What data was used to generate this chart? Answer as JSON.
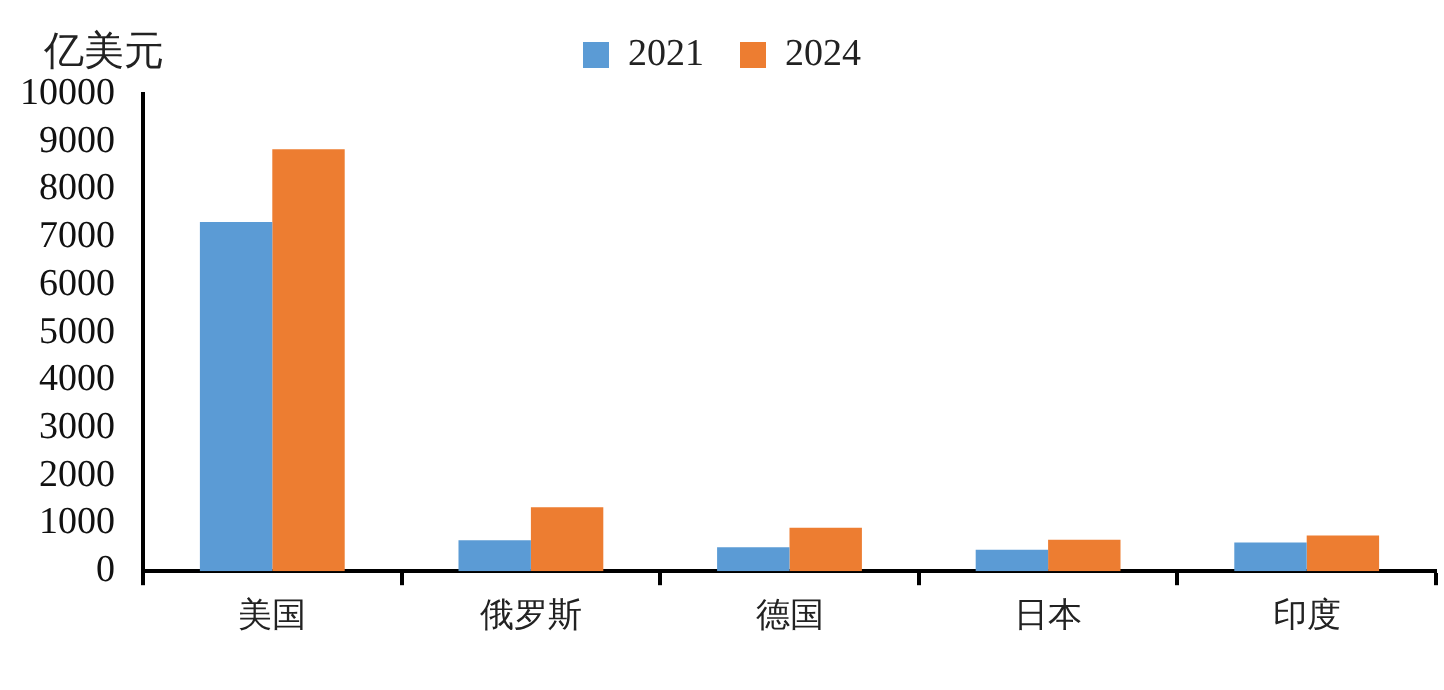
{
  "chart_data": {
    "type": "bar",
    "ylabel": "亿美元",
    "categories": [
      "美国",
      "俄罗斯",
      "德国",
      "日本",
      "印度"
    ],
    "series": [
      {
        "name": "2021",
        "color": "#5b9bd5",
        "values": [
          7320,
          650,
          500,
          450,
          600
        ]
      },
      {
        "name": "2024",
        "color": "#ed7d31",
        "values": [
          8840,
          1340,
          910,
          660,
          750
        ]
      }
    ],
    "ylim": [
      0,
      10000
    ],
    "yticks": [
      0,
      1000,
      2000,
      3000,
      4000,
      5000,
      6000,
      7000,
      8000,
      9000,
      10000
    ],
    "grid": false,
    "legend": "top"
  }
}
